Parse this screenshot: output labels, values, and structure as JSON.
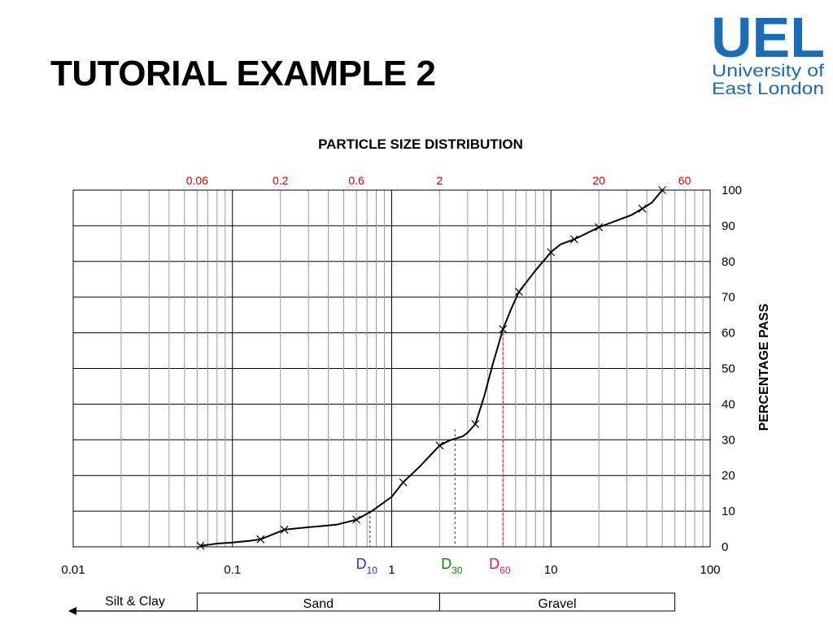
{
  "slide": {
    "title": "TUTORIAL EXAMPLE 2"
  },
  "logo": {
    "wordmark": "UEL",
    "line1": "University of",
    "line2": "East London",
    "color": "#1a6db4"
  },
  "chart_data": {
    "type": "line",
    "title": "PARTICLE SIZE DISTRIBUTION",
    "ylabel": "PERCENTAGE PASS",
    "xlabel": "",
    "x_scale": "log",
    "xlim": [
      0.01,
      100
    ],
    "ylim": [
      0,
      100
    ],
    "grid": true,
    "x_ticks": [
      "0.01",
      "0.1",
      "1",
      "10",
      "100"
    ],
    "y_ticks": [
      "0",
      "10",
      "20",
      "30",
      "40",
      "50",
      "60",
      "70",
      "80",
      "90",
      "100"
    ],
    "sieve_labels": [
      {
        "value": 0.06,
        "text": "0.06"
      },
      {
        "value": 0.2,
        "text": "0.2"
      },
      {
        "value": 0.6,
        "text": "0.6"
      },
      {
        "value": 2,
        "text": "2"
      },
      {
        "value": 20,
        "text": "20"
      },
      {
        "value": 60,
        "text": "60"
      }
    ],
    "sieve_label_color": "#e00000",
    "series": [
      {
        "color": "#000000",
        "x": [
          0.063,
          0.15,
          0.212,
          0.6,
          1.18,
          2.0,
          3.35,
          5.0,
          6.3,
          10.0,
          14.0,
          20.0,
          37.5,
          50.0
        ],
        "y": [
          0.3,
          2.1,
          4.8,
          7.6,
          18.1,
          28.4,
          34.4,
          61.0,
          71.5,
          82.6,
          86.2,
          89.6,
          94.8,
          100
        ]
      }
    ],
    "curve_path": [
      [
        0.063,
        0.3
      ],
      [
        0.08,
        0.9
      ],
      [
        0.1,
        1.2
      ],
      [
        0.13,
        1.7
      ],
      [
        0.15,
        2.1
      ],
      [
        0.212,
        4.8
      ],
      [
        0.3,
        5.5
      ],
      [
        0.45,
        6.2
      ],
      [
        0.6,
        7.6
      ],
      [
        0.75,
        10.0
      ],
      [
        1.0,
        14.0
      ],
      [
        1.18,
        18.1
      ],
      [
        1.5,
        22.5
      ],
      [
        2.0,
        28.4
      ],
      [
        2.3,
        29.8
      ],
      [
        2.8,
        31.0
      ],
      [
        3.0,
        32.0
      ],
      [
        3.35,
        34.4
      ],
      [
        3.8,
        42.0
      ],
      [
        4.3,
        51.0
      ],
      [
        5.0,
        61.0
      ],
      [
        5.6,
        66.5
      ],
      [
        6.3,
        71.5
      ],
      [
        8.0,
        77.5
      ],
      [
        10.0,
        82.6
      ],
      [
        11.5,
        84.8
      ],
      [
        14.0,
        86.2
      ],
      [
        20.0,
        89.6
      ],
      [
        25.0,
        91.2
      ],
      [
        32.0,
        93.0
      ],
      [
        37.5,
        94.8
      ],
      [
        43.0,
        96.5
      ],
      [
        50.0,
        100
      ]
    ],
    "annotations": [
      {
        "name": "D",
        "sub": "10",
        "x": 0.73,
        "y": 10,
        "color": "#2b35a8"
      },
      {
        "name": "D",
        "sub": "30",
        "x": 2.5,
        "y": 33,
        "color": "#0a8a0a"
      },
      {
        "name": "D",
        "sub": "60",
        "x": 5.0,
        "y": 60,
        "color": "#e0157a"
      }
    ],
    "classification": {
      "silt_clay": {
        "label": "Silt & Clay",
        "to": 0.06
      },
      "bands": [
        {
          "label": "Sand",
          "from": 0.06,
          "to": 2
        },
        {
          "label": "Gravel",
          "from": 2,
          "to": 60
        }
      ]
    }
  }
}
